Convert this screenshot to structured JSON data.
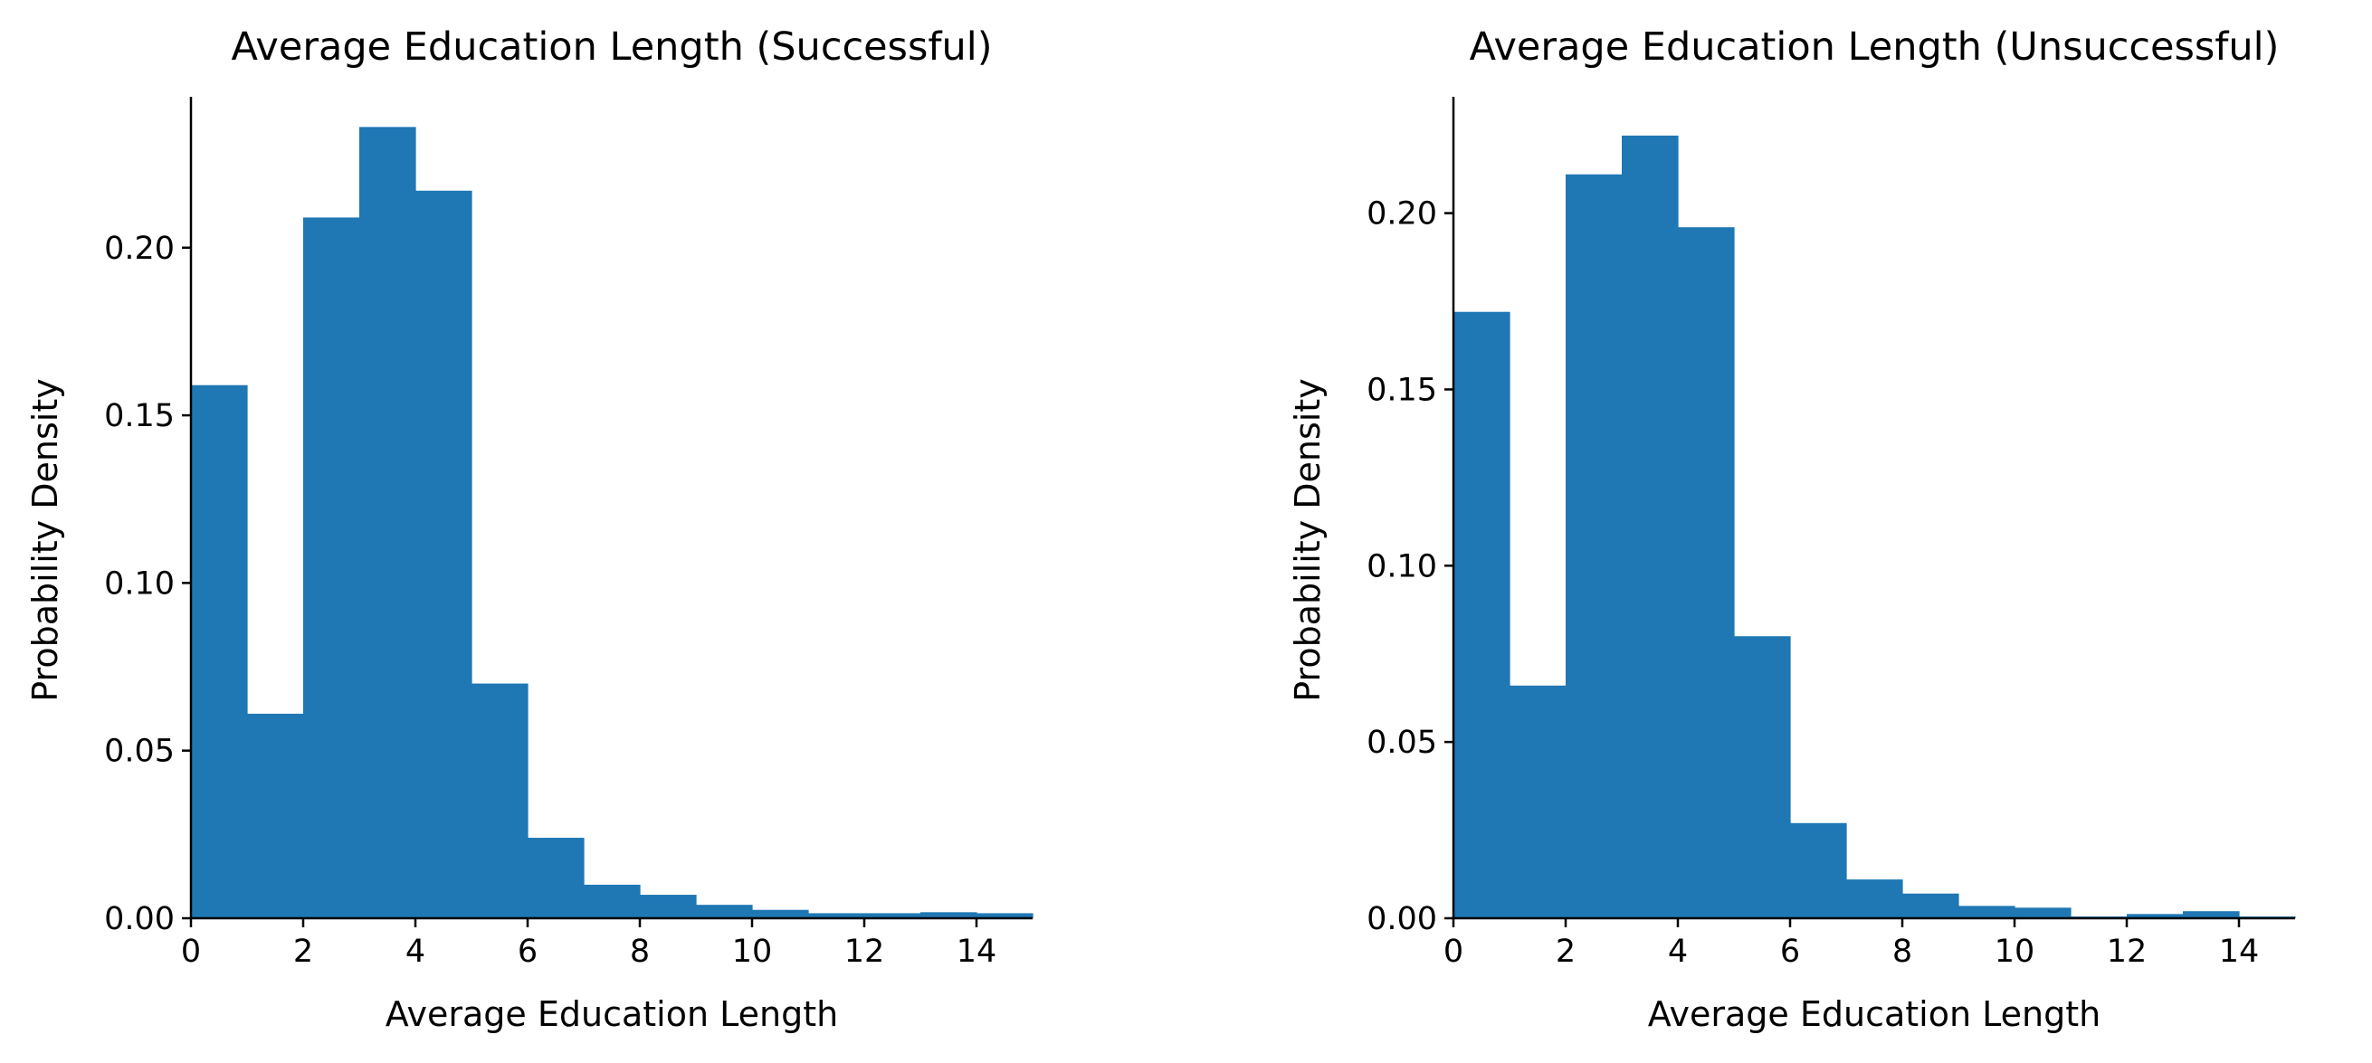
{
  "chart_data": [
    {
      "type": "bar",
      "title": "Average Education Length (Successful)",
      "xlabel": "Average Education Length",
      "ylabel": "Probability Density",
      "xlim": [
        0,
        15
      ],
      "ylim": [
        0,
        0.245
      ],
      "xticks": [
        "0",
        "2",
        "4",
        "6",
        "8",
        "10",
        "12",
        "14"
      ],
      "yticks": [
        "0.00",
        "0.05",
        "0.10",
        "0.15",
        "0.20"
      ],
      "bin_edges": [
        0,
        1,
        2,
        3,
        4,
        5,
        6,
        7,
        8,
        9,
        10,
        11,
        12,
        13,
        14,
        15
      ],
      "values": [
        0.159,
        0.061,
        0.209,
        0.236,
        0.217,
        0.07,
        0.024,
        0.01,
        0.007,
        0.004,
        0.0025,
        0.0015,
        0.0015,
        0.0018,
        0.0015
      ],
      "color": "#1f77b4",
      "grid": false,
      "legend": "none"
    },
    {
      "type": "bar",
      "title": "Average Education Length (Unsuccessful)",
      "xlabel": "Average Education Length",
      "ylabel": "Probability Density",
      "xlim": [
        0,
        15
      ],
      "ylim": [
        0,
        0.233
      ],
      "xticks": [
        "0",
        "2",
        "4",
        "6",
        "8",
        "10",
        "12",
        "14"
      ],
      "yticks": [
        "0.00",
        "0.05",
        "0.10",
        "0.15",
        "0.20"
      ],
      "bin_edges": [
        0,
        1,
        2,
        3,
        4,
        5,
        6,
        7,
        8,
        9,
        10,
        11,
        12,
        13,
        14,
        15
      ],
      "values": [
        0.172,
        0.066,
        0.211,
        0.222,
        0.196,
        0.08,
        0.027,
        0.011,
        0.007,
        0.0035,
        0.003,
        0.0005,
        0.0012,
        0.002,
        0.0005
      ],
      "color": "#1f77b4",
      "grid": false,
      "legend": "none"
    }
  ]
}
